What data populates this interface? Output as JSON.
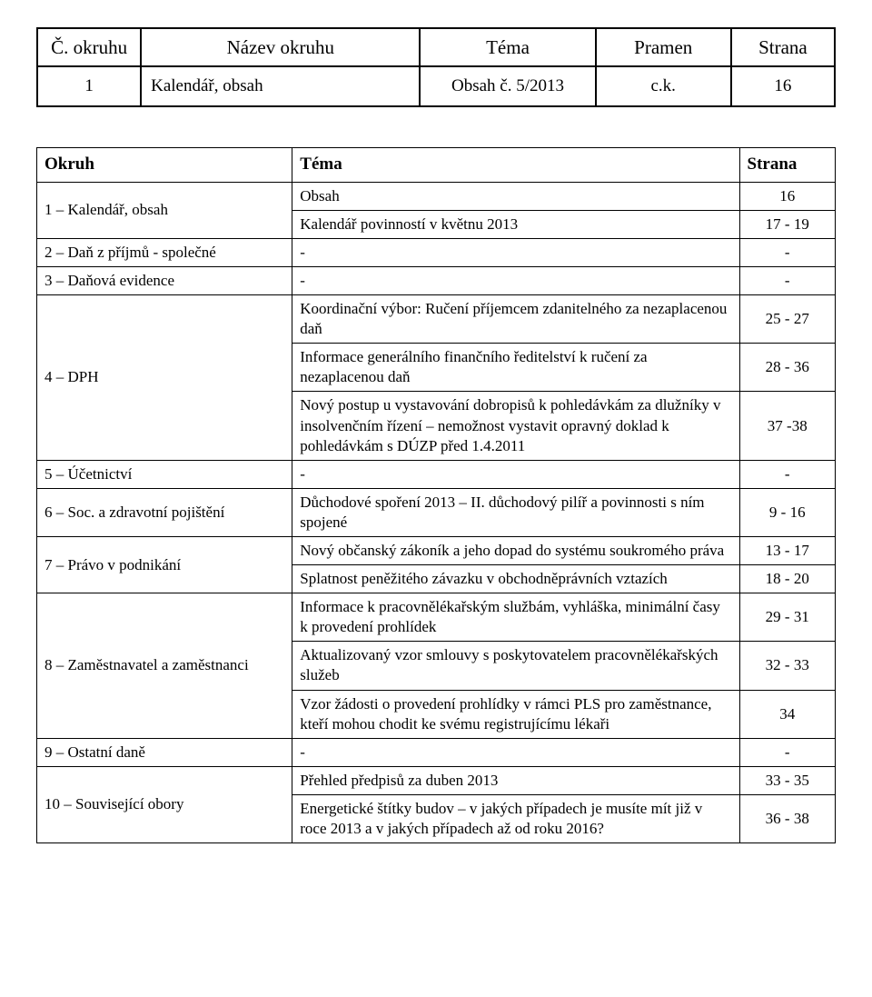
{
  "top": {
    "headers": [
      "Č. okruhu",
      "Název okruhu",
      "Téma",
      "Pramen",
      "Strana"
    ],
    "row": [
      "1",
      "Kalendář, obsah",
      "Obsah č. 5/2013",
      "c.k.",
      "16"
    ]
  },
  "main": {
    "headers": [
      "Okruh",
      "Téma",
      "Strana"
    ],
    "rows": [
      {
        "okruh": "1 – Kalendář, obsah",
        "items": [
          {
            "tema": "Obsah",
            "strana": "16"
          },
          {
            "tema": "Kalendář povinností v květnu 2013",
            "strana": "17 - 19"
          }
        ]
      },
      {
        "okruh": "2 – Daň z příjmů - společné",
        "items": [
          {
            "tema": "-",
            "strana": "-"
          }
        ]
      },
      {
        "okruh": "3 – Daňová evidence",
        "items": [
          {
            "tema": "-",
            "strana": "-"
          }
        ]
      },
      {
        "okruh": "4 – DPH",
        "items": [
          {
            "tema": "Koordinační výbor: Ručení příjemcem zdanitelného za nezaplacenou daň",
            "strana": "25 - 27"
          },
          {
            "tema": "Informace generálního finančního ředitelství k ručení za nezaplacenou daň",
            "strana": "28 - 36"
          },
          {
            "tema": "Nový postup u vystavování dobropisů k pohledávkám za dlužníky v insolvenčním řízení – nemožnost vystavit opravný doklad k pohledávkám s DÚZP před 1.4.2011",
            "strana": "37 -38"
          }
        ]
      },
      {
        "okruh": "5 – Účetnictví",
        "items": [
          {
            "tema": "-",
            "strana": "-"
          }
        ]
      },
      {
        "okruh": "6 – Soc. a zdravotní pojištění",
        "items": [
          {
            "tema": "Důchodové spoření 2013 – II. důchodový pilíř a povinnosti s ním spojené",
            "strana": "9 - 16"
          }
        ]
      },
      {
        "okruh": "7 – Právo v podnikání",
        "items": [
          {
            "tema": "Nový občanský zákoník a jeho dopad do systému soukromého práva",
            "strana": "13 - 17",
            "justify": true
          },
          {
            "tema": "Splatnost peněžitého závazku v obchodněprávních vztazích",
            "strana": "18 - 20",
            "justify": true
          }
        ]
      },
      {
        "okruh": "8 – Zaměstnavatel a zaměstnanci",
        "items": [
          {
            "tema": "Informace k pracovnělékařským službám, vyhláška, minimální časy k provedení prohlídek",
            "strana": "29 - 31"
          },
          {
            "tema": "Aktualizovaný vzor smlouvy s poskytovatelem pracovnělékařských služeb",
            "strana": "32 - 33"
          },
          {
            "tema": "Vzor žádosti o provedení prohlídky v rámci PLS pro zaměstnance, kteří mohou chodit ke svému registrujícímu lékaři",
            "strana": "34"
          }
        ]
      },
      {
        "okruh": "9 – Ostatní daně",
        "items": [
          {
            "tema": "-",
            "strana": "-"
          }
        ]
      },
      {
        "okruh": "10 – Související obory",
        "items": [
          {
            "tema": "Přehled předpisů za duben 2013",
            "strana": "33 - 35"
          },
          {
            "tema": "Energetické štítky budov – v jakých případech je musíte mít již v roce 2013 a v jakých případech až od roku 2016?",
            "strana": "36 - 38"
          }
        ]
      }
    ]
  }
}
